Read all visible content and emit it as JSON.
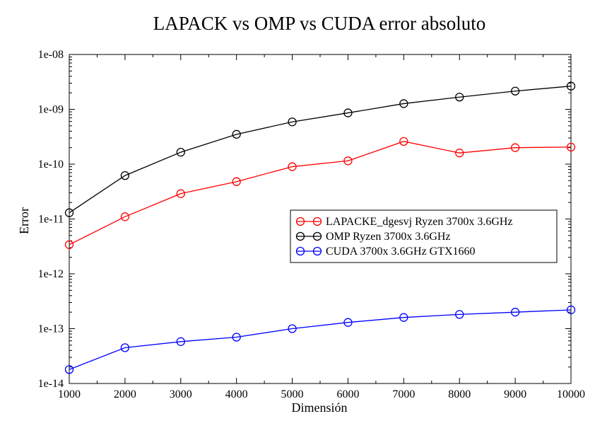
{
  "chart_data": {
    "type": "line",
    "title": "LAPACK vs OMP vs CUDA error absoluto",
    "xlabel": "Dimensión",
    "ylabel": "Error",
    "x": [
      1000,
      2000,
      3000,
      4000,
      5000,
      6000,
      7000,
      8000,
      9000,
      10000
    ],
    "xlim": [
      1000,
      10000
    ],
    "x_ticks": [
      "1000",
      "2000",
      "3000",
      "4000",
      "5000",
      "6000",
      "7000",
      "8000",
      "9000",
      "10000"
    ],
    "y_scale": "log",
    "ylim": [
      1e-14,
      1e-08
    ],
    "y_ticks": [
      "1e-08",
      "1e-09",
      "1e-10",
      "1e-11",
      "1e-12",
      "1e-13",
      "1e-14"
    ],
    "grid": false,
    "legend_position": "right-middle",
    "series": [
      {
        "name": "LAPACKE_dgesvj Ryzen 3700x 3.6GHz",
        "color": "#ff0000",
        "marker": "circle",
        "values": [
          3.4e-12,
          1.1e-11,
          2.9e-11,
          4.8e-11,
          9e-11,
          1.15e-10,
          2.6e-10,
          1.6e-10,
          2e-10,
          2.05e-10
        ]
      },
      {
        "name": "OMP Ryzen 3700x 3.6GHz",
        "color": "#000000",
        "marker": "circle",
        "values": [
          1.3e-11,
          6.2e-11,
          1.65e-10,
          3.5e-10,
          5.9e-10,
          8.6e-10,
          1.27e-09,
          1.67e-09,
          2.15e-09,
          2.65e-09
        ]
      },
      {
        "name": "CUDA 3700x 3.6GHz GTX1660",
        "color": "#0000ff",
        "marker": "circle",
        "values": [
          1.8e-14,
          4.5e-14,
          5.8e-14,
          7e-14,
          1e-13,
          1.3e-13,
          1.6e-13,
          1.82e-13,
          2e-13,
          2.2e-13
        ]
      }
    ]
  }
}
